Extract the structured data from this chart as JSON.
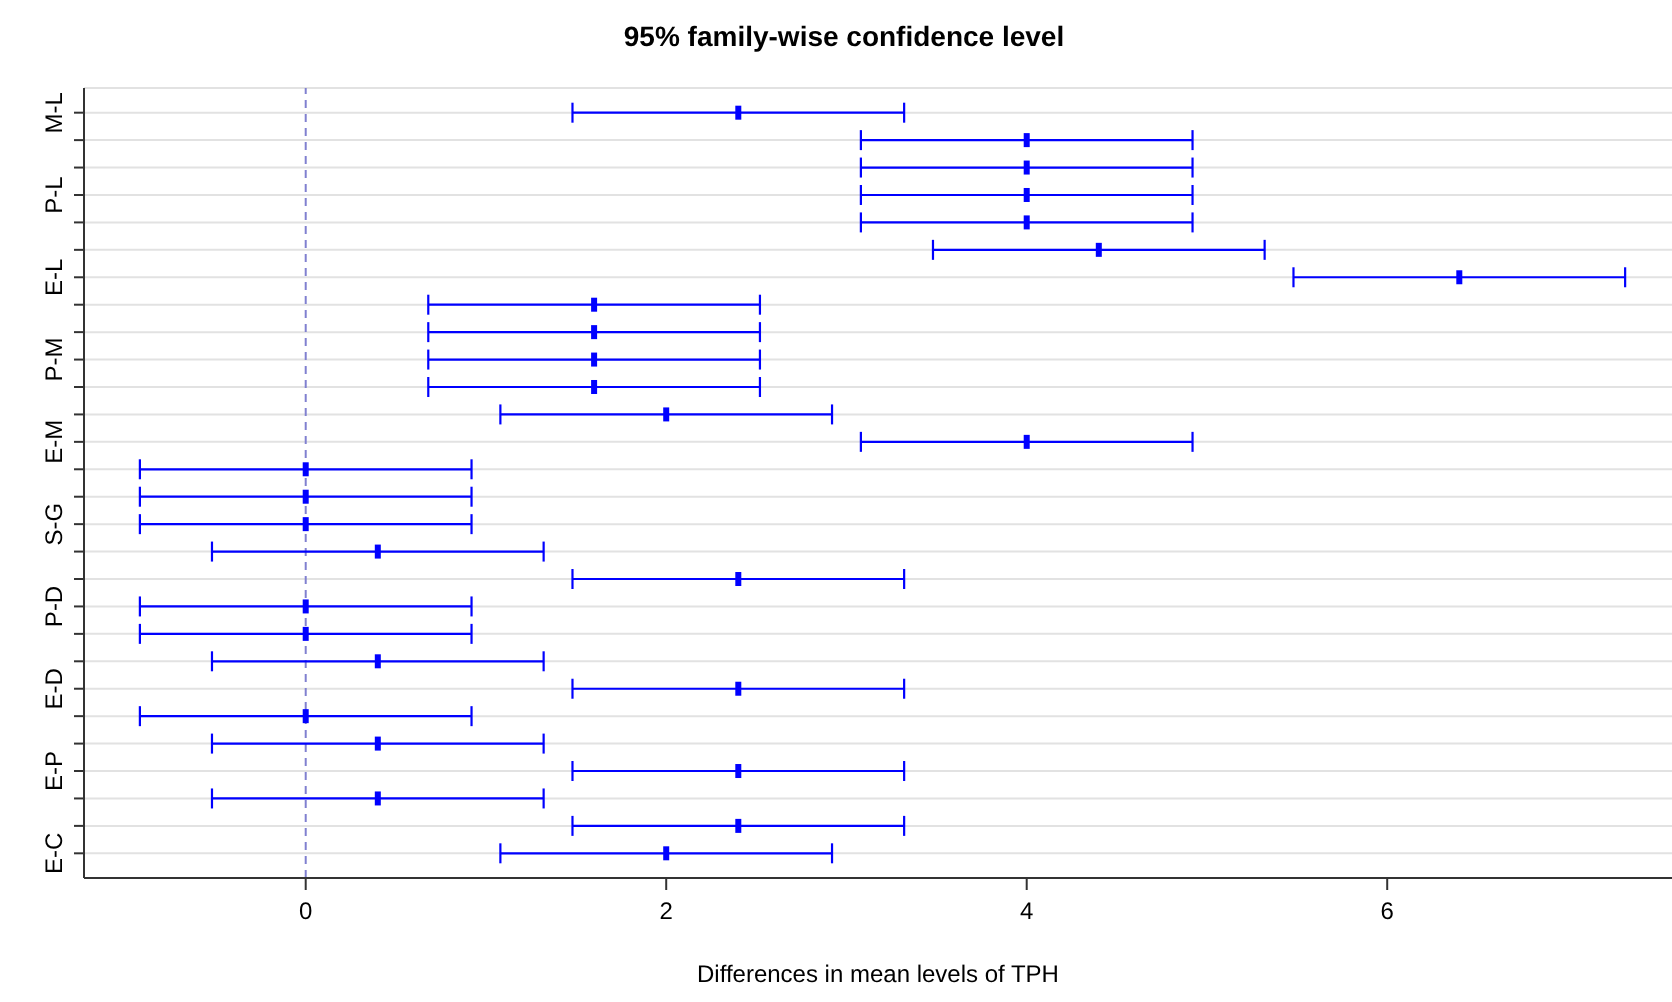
{
  "chart_data": {
    "type": "scatter",
    "orientation": "horizontal",
    "title": "95% family-wise confidence level",
    "xlabel": "Differences in mean levels of TPH",
    "categories": [
      "M-L",
      null,
      null,
      "P-L",
      null,
      null,
      "E-L",
      null,
      null,
      "P-M",
      null,
      null,
      "E-M",
      null,
      null,
      "S-G",
      null,
      null,
      "P-D",
      null,
      null,
      "E-D",
      null,
      null,
      "E-P",
      null,
      null,
      "E-C"
    ],
    "values": [
      2.4,
      4.0,
      4.0,
      4.0,
      4.0,
      4.4,
      6.4,
      1.6,
      1.6,
      1.6,
      1.6,
      2.0,
      4.0,
      0,
      0,
      0,
      0.4,
      2.4,
      0,
      0,
      0.4,
      2.4,
      0,
      0.4,
      2.4,
      0.4,
      2.4,
      2.0
    ],
    "errors": [
      [
        1.48,
        3.32
      ],
      [
        3.08,
        4.92
      ],
      [
        3.08,
        4.92
      ],
      [
        3.08,
        4.92
      ],
      [
        3.08,
        4.92
      ],
      [
        3.48,
        5.32
      ],
      [
        5.48,
        7.32
      ],
      [
        0.68,
        2.52
      ],
      [
        0.68,
        2.52
      ],
      [
        0.68,
        2.52
      ],
      [
        0.68,
        2.52
      ],
      [
        1.08,
        2.92
      ],
      [
        3.08,
        4.92
      ],
      [
        -0.92,
        0.92
      ],
      [
        -0.92,
        0.92
      ],
      [
        -0.92,
        0.92
      ],
      [
        -0.52,
        1.32
      ],
      [
        1.48,
        3.32
      ],
      [
        -0.92,
        0.92
      ],
      [
        -0.92,
        0.92
      ],
      [
        -0.52,
        1.32
      ],
      [
        1.48,
        3.32
      ],
      [
        -0.92,
        0.92
      ],
      [
        -0.52,
        1.32
      ],
      [
        1.48,
        3.32
      ],
      [
        -0.52,
        1.32
      ],
      [
        1.48,
        3.32
      ],
      [
        1.08,
        2.92
      ]
    ],
    "color": "#0000ff",
    "xlim": [
      -1.23,
      7.58
    ],
    "xticks": [
      0,
      2,
      4,
      6
    ],
    "grid": "y",
    "ref_lines": [
      {
        "axis": "x",
        "value": 0,
        "color": "#8080d0",
        "line_style": "dashed"
      }
    ]
  }
}
